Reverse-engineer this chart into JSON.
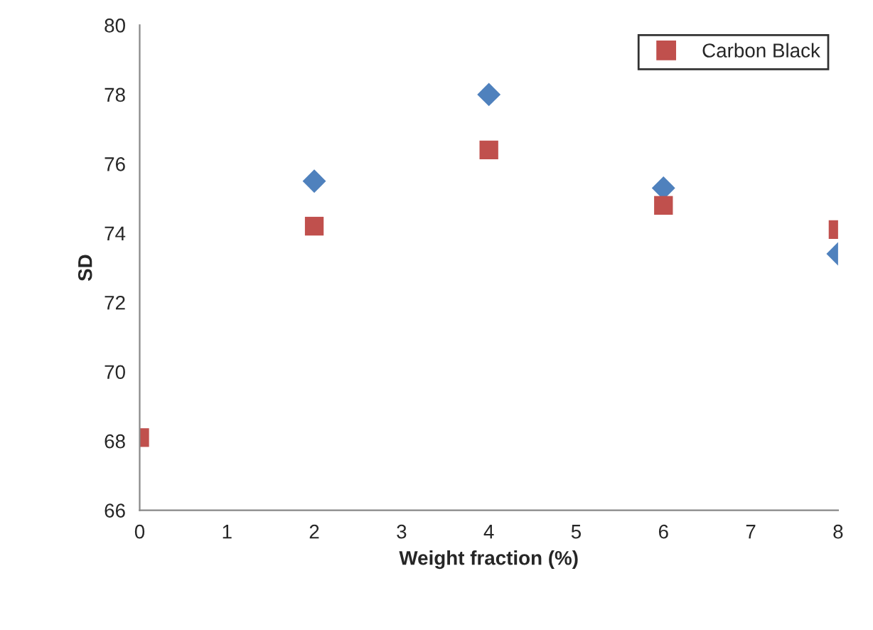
{
  "chart_data": {
    "type": "scatter",
    "xlabel": "Weight fraction (%)",
    "ylabel": "SD",
    "x": [
      0,
      2,
      4,
      6,
      8
    ],
    "series": [
      {
        "color": "#4f81bd",
        "marker": "diamond",
        "values": [
          null,
          75.5,
          78.0,
          75.3,
          73.4
        ]
      },
      {
        "name": "Carbon Black",
        "color": "#c0504d",
        "marker": "square",
        "values": [
          68.1,
          74.2,
          76.4,
          74.8,
          74.1
        ]
      }
    ],
    "xlim": [
      0,
      8
    ],
    "xticks": [
      0,
      1,
      2,
      3,
      4,
      5,
      6,
      7,
      8
    ],
    "ylim": [
      66,
      80
    ],
    "yticks": [
      66,
      68,
      70,
      72,
      74,
      76,
      78,
      80
    ],
    "grid": false,
    "legend": "top right"
  }
}
